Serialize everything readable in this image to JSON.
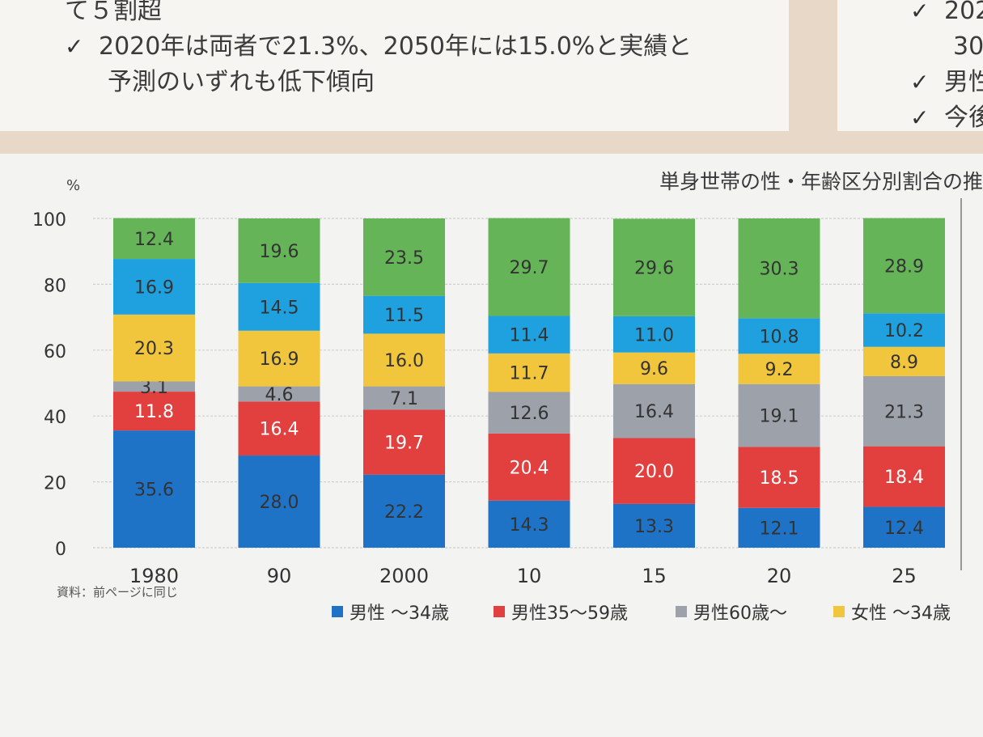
{
  "notes": {
    "left_lines": [
      "て５割超",
      "2020年は両者で21.3%、2050年には15.0%と実績と",
      "予測のいずれも低下傾向"
    ],
    "right_lines": [
      "202",
      "30.",
      "男性",
      "今後"
    ]
  },
  "chart_data": {
    "type": "stacked-bar",
    "title": "単身世帯の性・年齢区分別割合の推",
    "ylabel": "%",
    "ylim": [
      0,
      100
    ],
    "y_ticks": [
      "100",
      "80",
      "60",
      "40",
      "20",
      "0"
    ],
    "categories": [
      "1980",
      "90",
      "2000",
      "10",
      "15",
      "20",
      "25"
    ],
    "series": [
      {
        "name": "男性 〜34歳",
        "color": "#1f73c7",
        "label_color": "#333333",
        "values": [
          35.6,
          28.0,
          22.2,
          14.3,
          13.3,
          12.1,
          12.4
        ]
      },
      {
        "name": "男性35〜59歳",
        "color": "#e2403f",
        "label_color": "#ffffff",
        "values": [
          11.8,
          16.4,
          19.7,
          20.4,
          20.0,
          18.5,
          18.4
        ]
      },
      {
        "name": "男性60歳〜",
        "color": "#9ca1aa",
        "label_color": "#333333",
        "values": [
          3.1,
          4.6,
          7.1,
          12.6,
          16.4,
          19.1,
          21.3
        ]
      },
      {
        "name": "女性 〜34歳",
        "color": "#f2c63c",
        "label_color": "#333333",
        "values": [
          20.3,
          16.9,
          16.0,
          11.7,
          9.6,
          9.2,
          8.9
        ]
      },
      {
        "name": "",
        "color": "#1fa1df",
        "label_color": "#333333",
        "values": [
          16.9,
          14.5,
          11.5,
          11.4,
          11.0,
          10.8,
          10.2
        ]
      },
      {
        "name": "",
        "color": "#65b457",
        "label_color": "#333333",
        "values": [
          12.4,
          19.6,
          23.5,
          29.7,
          29.6,
          30.3,
          28.9
        ]
      }
    ],
    "source": "資料：前ページに同じ",
    "legend": [
      "男性 〜34歳",
      "男性35〜59歳",
      "男性60歳〜",
      "女性 〜34歳"
    ]
  }
}
